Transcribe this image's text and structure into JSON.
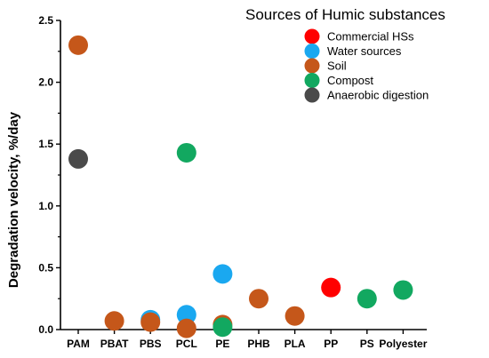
{
  "chart_data": {
    "type": "scatter",
    "ylabel": "Degradation velocity, %/day",
    "ylim": [
      0,
      2.5
    ],
    "yticks": [
      "0.0",
      "0.5",
      "1.0",
      "1.5",
      "2.0",
      "2.5"
    ],
    "categories": [
      "PAM",
      "PBAT",
      "PBS",
      "PCL",
      "PE",
      "PHB",
      "PLA",
      "PP",
      "PS",
      "Polyester"
    ],
    "legend": {
      "title": "Sources of Humic substances",
      "placement": "top-right"
    },
    "series": [
      {
        "name": "Commercial HSs",
        "color": "#ff0000",
        "points": [
          {
            "x": "PP",
            "y": 0.34
          }
        ]
      },
      {
        "name": "Water sources",
        "color": "#1aa8f0",
        "points": [
          {
            "x": "PBS",
            "y": 0.08
          },
          {
            "x": "PCL",
            "y": 0.12
          },
          {
            "x": "PE",
            "y": 0.45
          }
        ]
      },
      {
        "name": "Soil",
        "color": "#c5571a",
        "points": [
          {
            "x": "PAM",
            "y": 2.3
          },
          {
            "x": "PBAT",
            "y": 0.07
          },
          {
            "x": "PBS",
            "y": 0.06
          },
          {
            "x": "PCL",
            "y": 0.01
          },
          {
            "x": "PE",
            "y": 0.04
          },
          {
            "x": "PHB",
            "y": 0.25
          },
          {
            "x": "PLA",
            "y": 0.11
          }
        ]
      },
      {
        "name": "Compost",
        "color": "#12a860",
        "points": [
          {
            "x": "PCL",
            "y": 1.43
          },
          {
            "x": "PE",
            "y": 0.02
          },
          {
            "x": "PS",
            "y": 0.25
          },
          {
            "x": "Polyester",
            "y": 0.32
          }
        ]
      },
      {
        "name": "Anaerobic digestion",
        "color": "#4a4a4a",
        "points": [
          {
            "x": "PAM",
            "y": 1.38
          }
        ]
      }
    ],
    "grid": false
  }
}
